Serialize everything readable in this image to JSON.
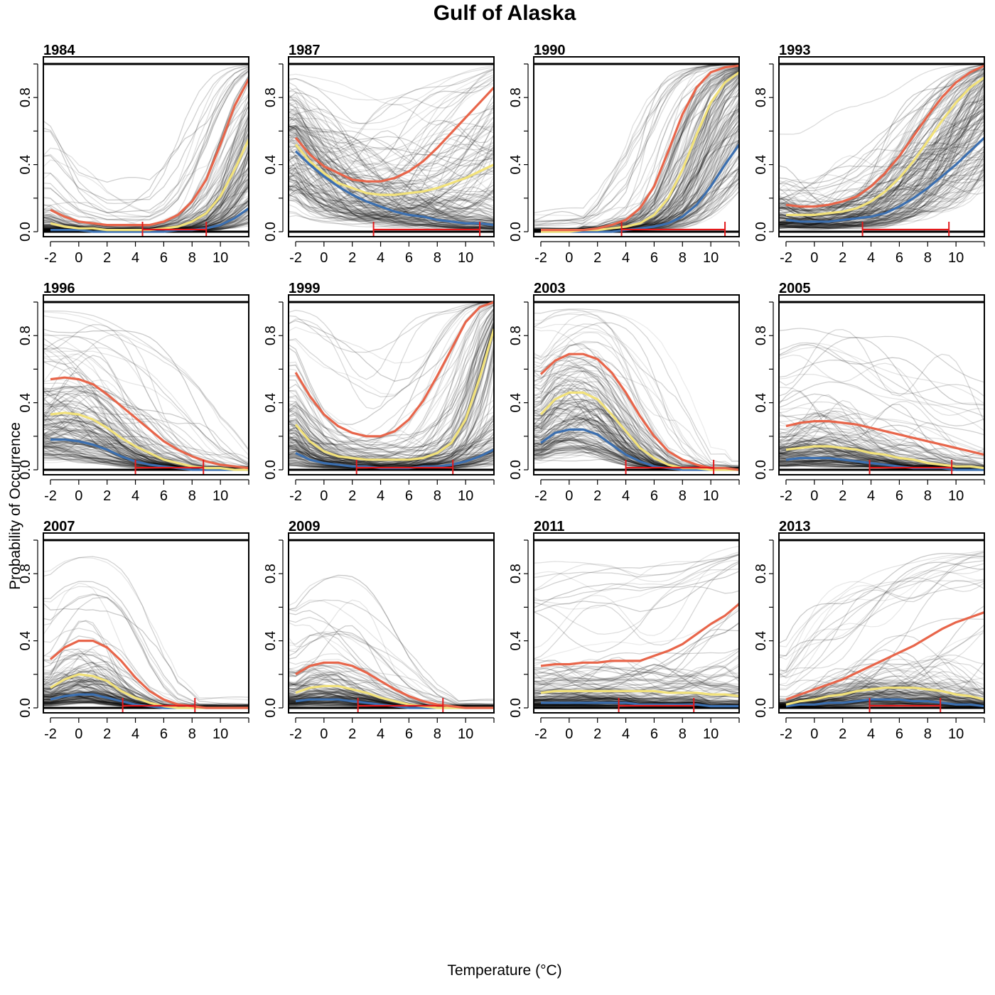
{
  "figure": {
    "title": "Gulf of Alaska",
    "xlabel": "Temperature",
    "xlabel_unit": "(°C)",
    "ylabel": "Probability of Occurrence"
  },
  "chart_data": {
    "type": "line",
    "description_units": "x = temperature (°C), y = probability of occurrence",
    "xlim": [
      -2.5,
      12
    ],
    "ylim": [
      0,
      1
    ],
    "x_ticks": [
      -2,
      0,
      2,
      4,
      6,
      8,
      10
    ],
    "y_ticks": [
      0,
      0.4,
      0.8
    ],
    "y_tick_labels": [
      "0.0",
      "0.4",
      "0.8"
    ],
    "colors": {
      "upper": "#e8654a",
      "median": "#f2e27a",
      "lower": "#3b6fb0",
      "range": "#e31a1c",
      "ensemble": "#000000"
    },
    "x": [
      -2,
      -1,
      0,
      1,
      2,
      3,
      4,
      5,
      6,
      7,
      8,
      9,
      10,
      11,
      12
    ],
    "panels": [
      {
        "year": "1984",
        "upper": [
          0.13,
          0.09,
          0.06,
          0.05,
          0.04,
          0.04,
          0.04,
          0.04,
          0.06,
          0.1,
          0.18,
          0.31,
          0.52,
          0.75,
          0.91
        ],
        "median": [
          0.05,
          0.03,
          0.02,
          0.02,
          0.01,
          0.01,
          0.01,
          0.01,
          0.02,
          0.03,
          0.06,
          0.11,
          0.21,
          0.37,
          0.55
        ],
        "lower": [
          0.01,
          0.01,
          0.01,
          0.0,
          0.0,
          0.0,
          0.0,
          0.0,
          0.0,
          0.01,
          0.01,
          0.02,
          0.04,
          0.08,
          0.14
        ],
        "range": [
          4.5,
          9.0
        ]
      },
      {
        "year": "1987",
        "upper": [
          0.56,
          0.46,
          0.39,
          0.35,
          0.31,
          0.3,
          0.3,
          0.32,
          0.36,
          0.42,
          0.5,
          0.59,
          0.68,
          0.77,
          0.86
        ],
        "median": [
          0.52,
          0.42,
          0.35,
          0.29,
          0.26,
          0.23,
          0.22,
          0.22,
          0.23,
          0.24,
          0.26,
          0.29,
          0.32,
          0.36,
          0.4
        ],
        "lower": [
          0.48,
          0.4,
          0.33,
          0.27,
          0.22,
          0.18,
          0.15,
          0.12,
          0.1,
          0.09,
          0.07,
          0.06,
          0.05,
          0.05,
          0.04
        ],
        "range": [
          3.5,
          11.0
        ]
      },
      {
        "year": "1990",
        "upper": [
          0.01,
          0.01,
          0.01,
          0.01,
          0.02,
          0.04,
          0.07,
          0.14,
          0.27,
          0.48,
          0.7,
          0.86,
          0.95,
          0.98,
          0.99
        ],
        "median": [
          0.0,
          0.0,
          0.0,
          0.01,
          0.01,
          0.02,
          0.03,
          0.05,
          0.1,
          0.2,
          0.37,
          0.58,
          0.77,
          0.89,
          0.95
        ],
        "lower": [
          0.0,
          0.0,
          0.0,
          0.0,
          0.0,
          0.0,
          0.01,
          0.02,
          0.03,
          0.05,
          0.09,
          0.16,
          0.27,
          0.4,
          0.52
        ],
        "range": [
          3.7,
          11.0
        ]
      },
      {
        "year": "1993",
        "upper": [
          0.16,
          0.15,
          0.15,
          0.16,
          0.18,
          0.21,
          0.27,
          0.35,
          0.45,
          0.57,
          0.69,
          0.8,
          0.89,
          0.95,
          0.99
        ],
        "median": [
          0.1,
          0.1,
          0.1,
          0.11,
          0.12,
          0.14,
          0.18,
          0.24,
          0.32,
          0.42,
          0.54,
          0.66,
          0.77,
          0.86,
          0.92
        ],
        "lower": [
          0.07,
          0.06,
          0.06,
          0.06,
          0.07,
          0.08,
          0.09,
          0.11,
          0.15,
          0.2,
          0.26,
          0.33,
          0.4,
          0.48,
          0.56
        ],
        "range": [
          3.4,
          9.5
        ]
      },
      {
        "year": "1996",
        "upper": [
          0.54,
          0.55,
          0.54,
          0.51,
          0.45,
          0.38,
          0.31,
          0.24,
          0.17,
          0.12,
          0.08,
          0.05,
          0.03,
          0.02,
          0.01
        ],
        "median": [
          0.33,
          0.34,
          0.33,
          0.3,
          0.25,
          0.19,
          0.14,
          0.1,
          0.06,
          0.04,
          0.02,
          0.01,
          0.01,
          0.0,
          0.0
        ],
        "lower": [
          0.18,
          0.18,
          0.17,
          0.15,
          0.12,
          0.08,
          0.05,
          0.03,
          0.02,
          0.01,
          0.0,
          0.0,
          0.0,
          0.0,
          0.0
        ],
        "range": [
          4.0,
          8.8
        ]
      },
      {
        "year": "1999",
        "upper": [
          0.58,
          0.44,
          0.33,
          0.26,
          0.22,
          0.2,
          0.2,
          0.23,
          0.3,
          0.41,
          0.56,
          0.72,
          0.88,
          0.97,
          1.0
        ],
        "median": [
          0.27,
          0.17,
          0.11,
          0.08,
          0.07,
          0.06,
          0.06,
          0.06,
          0.06,
          0.07,
          0.1,
          0.16,
          0.3,
          0.55,
          0.84
        ],
        "lower": [
          0.1,
          0.06,
          0.04,
          0.03,
          0.02,
          0.02,
          0.01,
          0.01,
          0.01,
          0.02,
          0.02,
          0.03,
          0.05,
          0.08,
          0.12
        ],
        "range": [
          2.3,
          9.1
        ]
      },
      {
        "year": "2003",
        "upper": [
          0.57,
          0.65,
          0.69,
          0.69,
          0.66,
          0.58,
          0.46,
          0.32,
          0.2,
          0.11,
          0.06,
          0.03,
          0.01,
          0.01,
          0.0
        ],
        "median": [
          0.33,
          0.42,
          0.46,
          0.46,
          0.42,
          0.33,
          0.23,
          0.13,
          0.07,
          0.03,
          0.01,
          0.01,
          0.0,
          0.0,
          0.0
        ],
        "lower": [
          0.16,
          0.22,
          0.24,
          0.24,
          0.21,
          0.15,
          0.09,
          0.05,
          0.02,
          0.01,
          0.0,
          0.0,
          0.0,
          0.0,
          0.0
        ],
        "range": [
          4.0,
          10.2
        ]
      },
      {
        "year": "2005",
        "upper": [
          0.26,
          0.28,
          0.29,
          0.29,
          0.28,
          0.27,
          0.25,
          0.23,
          0.21,
          0.19,
          0.17,
          0.15,
          0.13,
          0.11,
          0.09
        ],
        "median": [
          0.12,
          0.13,
          0.14,
          0.14,
          0.13,
          0.12,
          0.1,
          0.09,
          0.07,
          0.06,
          0.04,
          0.03,
          0.02,
          0.02,
          0.01
        ],
        "lower": [
          0.06,
          0.07,
          0.07,
          0.07,
          0.06,
          0.05,
          0.04,
          0.03,
          0.02,
          0.01,
          0.01,
          0.01,
          0.0,
          0.0,
          0.0
        ],
        "range": [
          3.9,
          9.7
        ]
      },
      {
        "year": "2007",
        "upper": [
          0.29,
          0.36,
          0.4,
          0.4,
          0.36,
          0.28,
          0.18,
          0.1,
          0.05,
          0.02,
          0.01,
          0.0,
          0.0,
          0.0,
          0.0
        ],
        "median": [
          0.12,
          0.17,
          0.2,
          0.19,
          0.16,
          0.1,
          0.06,
          0.03,
          0.01,
          0.0,
          0.0,
          0.0,
          0.0,
          0.0,
          0.0
        ],
        "lower": [
          0.05,
          0.07,
          0.08,
          0.08,
          0.06,
          0.04,
          0.02,
          0.01,
          0.0,
          0.0,
          0.0,
          0.0,
          0.0,
          0.0,
          0.0
        ],
        "range": [
          3.1,
          8.2
        ]
      },
      {
        "year": "2009",
        "upper": [
          0.2,
          0.25,
          0.27,
          0.27,
          0.25,
          0.21,
          0.16,
          0.11,
          0.07,
          0.04,
          0.02,
          0.01,
          0.0,
          0.0,
          0.0
        ],
        "median": [
          0.09,
          0.12,
          0.13,
          0.13,
          0.11,
          0.09,
          0.06,
          0.04,
          0.02,
          0.01,
          0.0,
          0.0,
          0.0,
          0.0,
          0.0
        ],
        "lower": [
          0.04,
          0.05,
          0.05,
          0.05,
          0.04,
          0.03,
          0.02,
          0.01,
          0.0,
          0.0,
          0.0,
          0.0,
          0.0,
          0.0,
          0.0
        ],
        "range": [
          2.4,
          8.4
        ]
      },
      {
        "year": "2011",
        "upper": [
          0.25,
          0.26,
          0.26,
          0.27,
          0.27,
          0.28,
          0.28,
          0.28,
          0.31,
          0.34,
          0.38,
          0.44,
          0.5,
          0.55,
          0.62
        ],
        "median": [
          0.09,
          0.1,
          0.1,
          0.1,
          0.1,
          0.1,
          0.1,
          0.1,
          0.1,
          0.09,
          0.09,
          0.09,
          0.08,
          0.08,
          0.07
        ],
        "lower": [
          0.03,
          0.03,
          0.03,
          0.03,
          0.03,
          0.03,
          0.03,
          0.02,
          0.02,
          0.02,
          0.02,
          0.02,
          0.01,
          0.01,
          0.01
        ],
        "range": [
          3.5,
          8.8
        ]
      },
      {
        "year": "2013",
        "upper": [
          0.05,
          0.08,
          0.11,
          0.14,
          0.17,
          0.21,
          0.25,
          0.29,
          0.33,
          0.37,
          0.42,
          0.47,
          0.51,
          0.54,
          0.57
        ],
        "median": [
          0.02,
          0.04,
          0.05,
          0.07,
          0.08,
          0.1,
          0.11,
          0.12,
          0.12,
          0.12,
          0.11,
          0.1,
          0.08,
          0.07,
          0.05
        ],
        "lower": [
          0.01,
          0.02,
          0.02,
          0.03,
          0.03,
          0.04,
          0.05,
          0.05,
          0.05,
          0.04,
          0.04,
          0.03,
          0.02,
          0.02,
          0.01
        ],
        "range": [
          3.9,
          8.9
        ]
      }
    ]
  }
}
